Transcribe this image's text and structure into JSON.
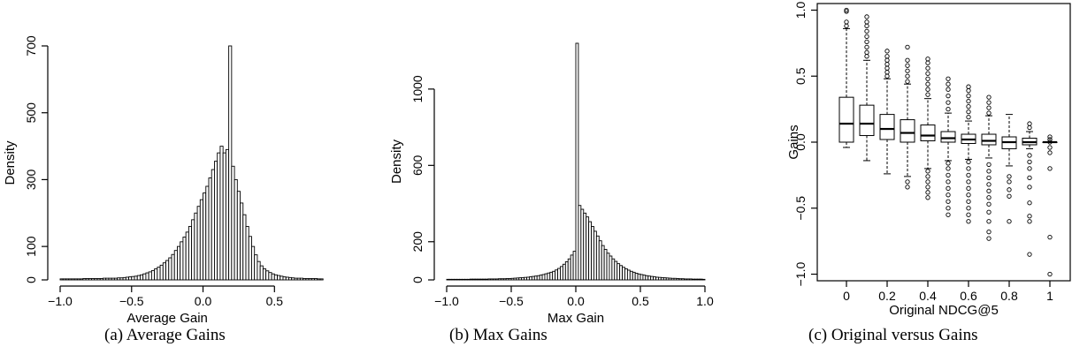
{
  "charts": [
    {
      "caption": "(a) Average Gains",
      "chart_data": {
        "type": "bar",
        "histogram": true,
        "title": "",
        "xlabel": "Average Gain",
        "ylabel": "Density",
        "xlim": [
          -1.0,
          0.82
        ],
        "ylim": [
          0,
          700
        ],
        "x_ticks": [
          -1.0,
          -0.5,
          0.0,
          0.5
        ],
        "x_tick_labels": [
          "−1.0",
          "−0.5",
          "0.0",
          "0.5"
        ],
        "y_ticks": [
          0,
          100,
          300,
          500,
          700
        ],
        "y_tick_labels": [
          "0",
          "100",
          "300",
          "500",
          "700"
        ],
        "bin_start": -1.0,
        "bin_width": 0.02,
        "values": [
          3,
          3,
          3,
          3,
          3,
          3,
          3,
          3,
          4,
          4,
          4,
          4,
          4,
          4,
          4,
          5,
          5,
          5,
          5,
          5,
          6,
          6,
          7,
          8,
          9,
          10,
          11,
          13,
          15,
          18,
          21,
          24,
          28,
          33,
          38,
          44,
          51,
          58,
          66,
          76,
          88,
          100,
          114,
          128,
          143,
          160,
          180,
          200,
          220,
          240,
          260,
          280,
          305,
          330,
          355,
          380,
          400,
          380,
          390,
          700,
          340,
          300,
          265,
          230,
          195,
          160,
          130,
          100,
          75,
          55,
          42,
          33,
          27,
          22,
          18,
          15,
          13,
          11,
          9,
          8,
          7,
          6,
          5,
          5,
          5,
          4,
          4,
          4,
          4,
          4,
          3,
          3
        ]
      }
    },
    {
      "caption": "(b) Max Gains",
      "chart_data": {
        "type": "bar",
        "histogram": true,
        "title": "",
        "xlabel": "Max Gain",
        "ylabel": "Density",
        "xlim": [
          -1.0,
          1.0
        ],
        "ylim": [
          0,
          1240
        ],
        "x_ticks": [
          -1.0,
          -0.5,
          0.0,
          0.5,
          1.0
        ],
        "x_tick_labels": [
          "−1.0",
          "−0.5",
          "0.0",
          "0.5",
          "1.0"
        ],
        "y_ticks": [
          0,
          200,
          600,
          1000
        ],
        "y_tick_labels": [
          "0",
          "200",
          "600",
          "1000"
        ],
        "bin_start": -1.0,
        "bin_width": 0.02,
        "values": [
          3,
          3,
          3,
          3,
          3,
          3,
          3,
          3,
          3,
          4,
          4,
          4,
          4,
          4,
          4,
          4,
          5,
          5,
          5,
          5,
          6,
          6,
          6,
          7,
          7,
          8,
          9,
          10,
          11,
          12,
          13,
          14,
          16,
          18,
          20,
          22,
          25,
          28,
          32,
          36,
          40,
          45,
          52,
          60,
          70,
          82,
          95,
          110,
          130,
          150,
          1240,
          390,
          370,
          350,
          330,
          305,
          280,
          255,
          230,
          205,
          180,
          160,
          140,
          125,
          110,
          97,
          85,
          75,
          66,
          58,
          51,
          45,
          40,
          35,
          31,
          28,
          25,
          22,
          20,
          18,
          16,
          14,
          13,
          12,
          11,
          10,
          9,
          8,
          8,
          7,
          6,
          6,
          5,
          5,
          5,
          4,
          4,
          4,
          4,
          3
        ]
      }
    },
    {
      "caption": "(c) Original versus Gains",
      "chart_data": {
        "type": "box",
        "title": "",
        "xlabel": "Original NDCG@5",
        "ylabel": "Gains",
        "ylim": [
          -1.05,
          1.05
        ],
        "x_tick_labels": [
          "0",
          "0.2",
          "0.4",
          "0.6",
          "0.8",
          "1"
        ],
        "y_ticks": [
          -1.0,
          -0.5,
          0.0,
          0.5,
          1.0
        ],
        "y_tick_labels": [
          "−1.0",
          "−0.5",
          "0.0",
          "0.5",
          "1.0"
        ],
        "boxes": [
          {
            "q1": 0.0,
            "median": 0.14,
            "q3": 0.34,
            "whisker_low": -0.04,
            "whisker_high": 0.86,
            "outliers": [
              0.88,
              0.91,
              0.99,
              1.0
            ]
          },
          {
            "q1": 0.05,
            "median": 0.14,
            "q3": 0.28,
            "whisker_low": -0.14,
            "whisker_high": 0.62,
            "outliers": [
              0.65,
              0.68,
              0.72,
              0.76,
              0.8,
              0.84,
              0.88,
              0.91,
              0.95
            ]
          },
          {
            "q1": 0.02,
            "median": 0.1,
            "q3": 0.21,
            "whisker_low": -0.24,
            "whisker_high": 0.48,
            "outliers": [
              0.5,
              0.53,
              0.56,
              0.59,
              0.62,
              0.65,
              0.69
            ]
          },
          {
            "q1": 0.0,
            "median": 0.07,
            "q3": 0.17,
            "whisker_low": -0.26,
            "whisker_high": 0.44,
            "outliers": [
              -0.34,
              -0.3,
              0.46,
              0.5,
              0.54,
              0.58,
              0.62,
              0.72
            ]
          },
          {
            "q1": 0.01,
            "median": 0.05,
            "q3": 0.13,
            "whisker_low": -0.2,
            "whisker_high": 0.33,
            "outliers": [
              -0.42,
              -0.38,
              -0.34,
              -0.3,
              -0.26,
              -0.22,
              0.36,
              0.4,
              0.44,
              0.48,
              0.52,
              0.56,
              0.6,
              0.63
            ]
          },
          {
            "q1": 0.0,
            "median": 0.03,
            "q3": 0.08,
            "whisker_low": -0.14,
            "whisker_high": 0.22,
            "outliers": [
              -0.55,
              -0.5,
              -0.45,
              -0.4,
              -0.35,
              -0.3,
              -0.25,
              -0.2,
              -0.16,
              0.25,
              0.3,
              0.35,
              0.4,
              0.44,
              0.48
            ]
          },
          {
            "q1": -0.01,
            "median": 0.02,
            "q3": 0.06,
            "whisker_low": -0.13,
            "whisker_high": 0.16,
            "outliers": [
              -0.6,
              -0.55,
              -0.5,
              -0.45,
              -0.4,
              -0.35,
              -0.3,
              -0.25,
              -0.2,
              -0.15,
              0.19,
              0.23,
              0.27,
              0.31,
              0.35,
              0.39,
              0.42
            ]
          },
          {
            "q1": -0.02,
            "median": 0.01,
            "q3": 0.06,
            "whisker_low": -0.12,
            "whisker_high": 0.2,
            "outliers": [
              -0.73,
              -0.68,
              -0.6,
              -0.53,
              -0.47,
              -0.42,
              -0.37,
              -0.32,
              -0.27,
              -0.22,
              -0.17,
              0.22,
              0.26,
              0.3,
              0.34
            ]
          },
          {
            "q1": -0.05,
            "median": 0.0,
            "q3": 0.04,
            "whisker_low": -0.18,
            "whisker_high": 0.21,
            "outliers": [
              -0.6,
              -0.41,
              -0.36,
              -0.3,
              -0.26
            ]
          },
          {
            "q1": -0.02,
            "median": 0.0,
            "q3": 0.03,
            "whisker_low": -0.05,
            "whisker_high": 0.08,
            "outliers": [
              -0.85,
              -0.6,
              -0.56,
              -0.46,
              -0.34,
              -0.27,
              -0.2,
              -0.15,
              -0.1,
              0.11,
              0.14
            ]
          },
          {
            "q1": 0.0,
            "median": 0.0,
            "q3": 0.0,
            "whisker_low": 0.0,
            "whisker_high": 0.0,
            "outliers": [
              -1.0,
              -0.72,
              -0.2,
              -0.08,
              -0.04,
              0.0,
              0.02,
              0.04
            ]
          }
        ]
      }
    }
  ]
}
